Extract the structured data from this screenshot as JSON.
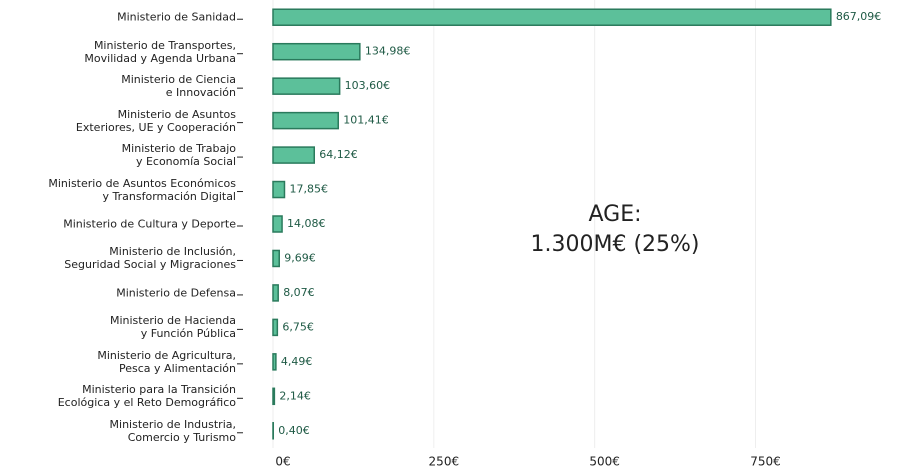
{
  "chart_data": {
    "type": "barh",
    "categories": [
      "Ministerio de Sanidad",
      "Ministerio de Transportes,\nMovilidad y Agenda Urbana",
      "Ministerio de Ciencia\ne Innovación",
      "Ministerio de Asuntos\nExteriores, UE y Cooperación",
      "Ministerio de Trabajo\ny Economía Social",
      "Ministerio de Asuntos Económicos\ny Transformación Digital",
      "Ministerio de Cultura y Deporte",
      "Ministerio de Inclusión,\nSeguridad Social y Migraciones",
      "Ministerio de Defensa",
      "Ministerio de Hacienda\ny Función Pública",
      "Ministerio de Agricultura,\nPesca y Alimentación",
      "Ministerio para la Transición\nEcológica y el Reto Demográfico",
      "Ministerio de Industria,\nComercio y Turismo"
    ],
    "values": [
      867.09,
      134.98,
      103.6,
      101.41,
      64.12,
      17.85,
      14.08,
      9.69,
      8.07,
      6.75,
      4.49,
      2.14,
      0.4
    ],
    "value_labels": [
      "867,09€",
      "134,98€",
      "103,60€",
      "101,41€",
      "64,12€",
      "17,85€",
      "14,08€",
      "9,69€",
      "8,07€",
      "6,75€",
      "4,49€",
      "2,14€",
      "0,40€"
    ],
    "color": "#5cc09a",
    "xlim": [
      0,
      900
    ],
    "xticks": [
      {
        "value": 0,
        "label": "0€"
      },
      {
        "value": 250,
        "label": "250€"
      },
      {
        "value": 500,
        "label": "500€"
      },
      {
        "value": 750,
        "label": "750€"
      }
    ],
    "grid": true,
    "annotation": "AGE:\n1.300M€ (25%)"
  }
}
